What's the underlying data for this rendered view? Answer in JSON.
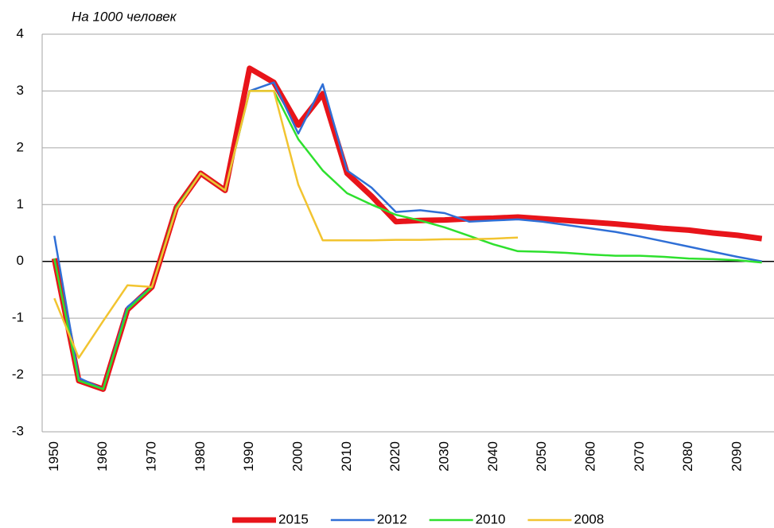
{
  "chart_data": {
    "type": "line",
    "title": "На 1000 человек",
    "x": [
      1950,
      1955,
      1960,
      1965,
      1970,
      1975,
      1980,
      1985,
      1990,
      1995,
      2000,
      2005,
      2010,
      2015,
      2020,
      2025,
      2030,
      2035,
      2040,
      2045,
      2050,
      2055,
      2060,
      2065,
      2070,
      2075,
      2080,
      2085,
      2090,
      2095
    ],
    "xlim": [
      1947.5,
      2097.5
    ],
    "xticks": [
      1950,
      1960,
      1970,
      1980,
      1990,
      2000,
      2010,
      2020,
      2030,
      2040,
      2050,
      2060,
      2070,
      2080,
      2090
    ],
    "ylim": [
      -3,
      4
    ],
    "yticks": [
      -3,
      -2,
      -1,
      0,
      1,
      2,
      3,
      4
    ],
    "grid": true,
    "series": [
      {
        "name": "2015",
        "color": "#e8141a",
        "width": 7,
        "values": [
          0.05,
          -2.1,
          -2.25,
          -0.85,
          -0.45,
          0.95,
          1.55,
          1.25,
          3.4,
          3.15,
          2.4,
          2.95,
          1.55,
          1.15,
          0.7,
          0.72,
          0.73,
          0.75,
          0.76,
          0.78,
          0.75,
          0.72,
          0.69,
          0.66,
          0.62,
          0.58,
          0.55,
          0.5,
          0.46,
          0.4
        ]
      },
      {
        "name": "2012",
        "color": "#2f6fd6",
        "width": 2.5,
        "values": [
          0.45,
          -2.05,
          -2.25,
          -0.8,
          -0.45,
          0.95,
          1.55,
          1.25,
          3.0,
          3.15,
          2.25,
          3.12,
          1.6,
          1.3,
          0.87,
          0.9,
          0.85,
          0.7,
          0.72,
          0.74,
          0.7,
          0.64,
          0.58,
          0.52,
          0.44,
          0.35,
          0.26,
          0.17,
          0.08,
          0
        ]
      },
      {
        "name": "2010",
        "color": "#2ee02e",
        "width": 2.5,
        "values": [
          0.05,
          -2.1,
          -2.25,
          -0.85,
          -0.45,
          0.95,
          1.55,
          1.25,
          3.0,
          3.0,
          2.15,
          1.6,
          1.2,
          1.0,
          0.82,
          0.72,
          0.6,
          0.45,
          0.3,
          0.18,
          0.17,
          0.15,
          0.12,
          0.1,
          0.1,
          0.08,
          0.05,
          0.04,
          0.02,
          -0.02
        ]
      },
      {
        "name": "2008",
        "color": "#f2c430",
        "width": 2.5,
        "values": [
          -0.65,
          -1.7,
          -1.05,
          -0.42,
          -0.45,
          0.92,
          1.55,
          1.25,
          3.0,
          3.0,
          1.35,
          0.37,
          0.37,
          0.37,
          0.38,
          0.38,
          0.39,
          0.39,
          0.4,
          0.42,
          null,
          null,
          null,
          null,
          null,
          null,
          null,
          null,
          null,
          null
        ]
      }
    ]
  }
}
